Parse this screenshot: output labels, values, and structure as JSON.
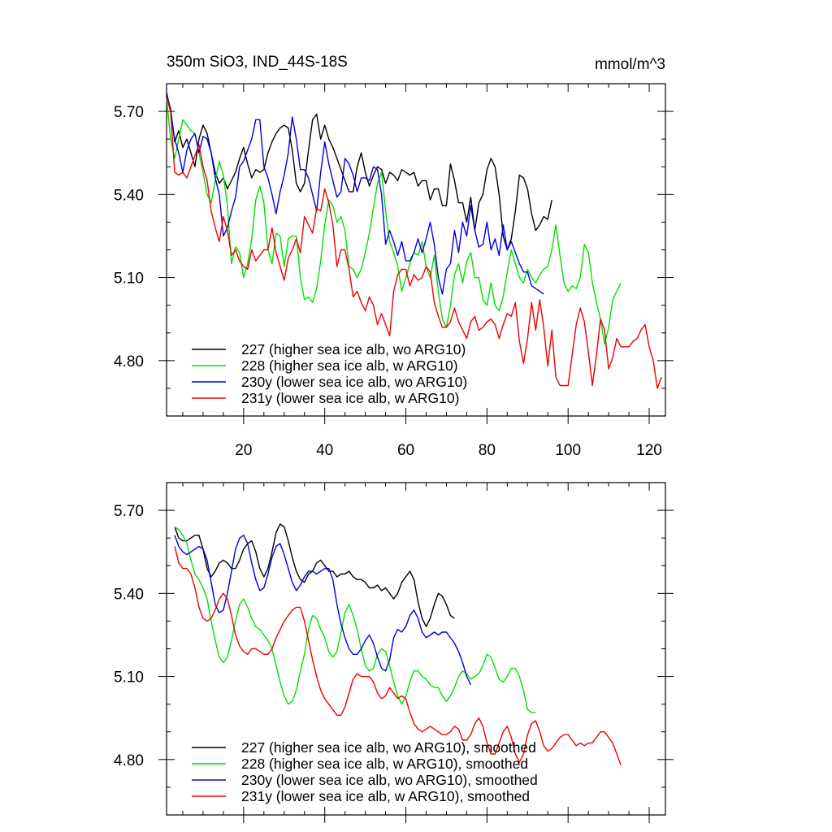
{
  "title_left": "350m SiO3, IND_44S-18S",
  "title_right": "mmol/m^3",
  "colors": {
    "227": "#000000",
    "228": "#00e000",
    "230y": "#0000dd",
    "231y": "#ee0000"
  },
  "chart_data": [
    {
      "type": "line",
      "name": "top-panel",
      "xlim": [
        1,
        124
      ],
      "ylim": [
        4.6,
        5.8
      ],
      "xticks": [
        20,
        40,
        60,
        80,
        100,
        120
      ],
      "xtick_labels": [
        "20",
        "40",
        "60",
        "80",
        "100",
        "120"
      ],
      "yticks": [
        4.8,
        5.1,
        5.4,
        5.7
      ],
      "ytick_labels": [
        "4.80",
        "5.10",
        "5.40",
        "5.70"
      ],
      "legend_position": "bottom-left",
      "series": [
        {
          "id": "227",
          "name": "227 (higher sea ice alb, wo ARG10)",
          "color": "#000000",
          "start": 1,
          "values": [
            5.76,
            5.71,
            5.59,
            5.63,
            5.57,
            5.6,
            5.55,
            5.5,
            5.6,
            5.65,
            5.62,
            5.55,
            5.48,
            5.44,
            5.46,
            5.42,
            5.45,
            5.48,
            5.53,
            5.57,
            5.51,
            5.46,
            5.49,
            5.48,
            5.49,
            5.55,
            5.59,
            5.62,
            5.64,
            5.65,
            5.64,
            5.56,
            5.44,
            5.41,
            5.44,
            5.56,
            5.67,
            5.69,
            5.6,
            5.65,
            5.6,
            5.57,
            5.53,
            5.49,
            5.45,
            5.41,
            5.41,
            5.5,
            5.55,
            5.48,
            5.43,
            5.47,
            5.5,
            5.49,
            5.44,
            5.48,
            5.47,
            5.45,
            5.49,
            5.48,
            5.47,
            5.48,
            5.43,
            5.45,
            5.45,
            5.38,
            5.42,
            5.42,
            5.36,
            5.36,
            5.51,
            5.45,
            5.37,
            5.37,
            5.3,
            5.39,
            5.27,
            5.37,
            5.4,
            5.49,
            5.53,
            5.5,
            5.4,
            5.25,
            5.2,
            5.24,
            5.34,
            5.47,
            5.46,
            5.42,
            5.33,
            5.27,
            5.29,
            5.32,
            5.31,
            5.38
          ]
        },
        {
          "id": "228",
          "name": "228 (higher sea ice alb, w ARG10)",
          "color": "#00e000",
          "start": 1,
          "values": [
            5.75,
            5.6,
            5.53,
            5.6,
            5.67,
            5.65,
            5.63,
            5.62,
            5.55,
            5.48,
            5.4,
            5.37,
            5.45,
            5.52,
            5.47,
            5.36,
            5.15,
            5.21,
            5.19,
            5.1,
            5.15,
            5.24,
            5.38,
            5.43,
            5.37,
            5.2,
            5.15,
            5.26,
            5.25,
            5.14,
            5.24,
            5.25,
            5.25,
            5.1,
            5.02,
            5.03,
            5.01,
            5.06,
            5.16,
            5.29,
            5.38,
            5.36,
            5.3,
            5.32,
            5.27,
            5.14,
            5.13,
            5.1,
            5.13,
            5.19,
            5.26,
            5.35,
            5.44,
            5.48,
            5.34,
            5.23,
            5.19,
            5.14,
            5.05,
            5.1,
            5.15,
            5.19,
            5.18,
            5.23,
            5.14,
            5.1,
            5.18,
            5.05,
            4.95,
            4.92,
            5.0,
            5.11,
            5.15,
            5.08,
            5.16,
            5.19,
            5.1,
            5.1,
            5.02,
            5.0,
            5.08,
            5.0,
            4.98,
            5.03,
            5.12,
            5.2,
            5.15,
            5.1,
            5.08,
            5.13,
            5.1,
            5.08,
            5.11,
            5.13,
            5.14,
            5.2,
            5.29,
            5.18,
            5.08,
            5.05,
            5.07,
            5.06,
            5.1,
            5.22,
            5.19,
            5.08,
            5.01,
            4.95,
            4.86,
            4.92,
            5.02,
            5.05,
            5.08
          ]
        },
        {
          "id": "230y",
          "name": "230y (lower sea ice alb, wo ARG10)",
          "color": "#0000dd",
          "start": 1,
          "values": [
            5.77,
            5.7,
            5.6,
            5.55,
            5.48,
            5.56,
            5.6,
            5.62,
            5.55,
            5.61,
            5.6,
            5.55,
            5.46,
            5.4,
            5.25,
            5.28,
            5.34,
            5.39,
            5.5,
            5.52,
            5.56,
            5.6,
            5.67,
            5.67,
            5.5,
            5.46,
            5.4,
            5.33,
            5.41,
            5.47,
            5.55,
            5.68,
            5.6,
            5.49,
            5.49,
            5.46,
            5.4,
            5.34,
            5.48,
            5.59,
            5.51,
            5.45,
            5.39,
            5.41,
            5.53,
            5.51,
            5.47,
            5.41,
            5.46,
            5.46,
            5.45,
            5.5,
            5.49,
            5.4,
            5.22,
            5.27,
            5.23,
            5.18,
            5.23,
            5.16,
            5.16,
            5.19,
            5.24,
            5.19,
            5.24,
            5.3,
            5.22,
            5.1,
            5.04,
            5.13,
            5.15,
            5.27,
            5.19,
            5.3,
            5.25,
            5.36,
            5.27,
            5.21,
            5.22,
            5.3,
            5.2,
            5.24,
            5.18,
            5.29,
            5.2,
            5.23,
            5.19,
            5.15,
            5.12,
            5.12,
            5.07,
            5.06,
            5.05,
            5.04
          ]
        },
        {
          "id": "231y",
          "name": "231y (lower sea ice alb, w ARG10)",
          "color": "#ee0000",
          "start": 1,
          "values": [
            5.75,
            5.7,
            5.48,
            5.47,
            5.48,
            5.46,
            5.5,
            5.54,
            5.58,
            5.5,
            5.45,
            5.34,
            5.28,
            5.23,
            5.32,
            5.27,
            5.18,
            5.2,
            5.16,
            5.14,
            5.13,
            5.2,
            5.16,
            5.18,
            5.2,
            5.2,
            5.28,
            5.19,
            5.14,
            5.09,
            5.17,
            5.2,
            5.24,
            5.19,
            5.32,
            5.29,
            5.26,
            5.35,
            5.34,
            5.42,
            5.37,
            5.29,
            5.14,
            5.2,
            5.2,
            5.13,
            5.03,
            5.05,
            5.01,
            4.98,
            5.03,
            5.0,
            4.93,
            4.97,
            4.93,
            4.89,
            5.05,
            5.11,
            5.13,
            5.13,
            5.07,
            5.11,
            5.09,
            5.1,
            5.14,
            5.12,
            5.01,
            4.96,
            4.92,
            4.92,
            4.94,
            4.99,
            4.94,
            4.91,
            4.88,
            4.94,
            4.96,
            4.91,
            4.92,
            4.94,
            4.95,
            4.93,
            4.88,
            4.93,
            4.97,
            4.96,
            5.01,
            4.87,
            4.79,
            4.88,
            5.01,
            4.91,
            5.02,
            4.92,
            4.78,
            4.91,
            4.74,
            4.71,
            4.71,
            4.71,
            4.82,
            4.93,
            4.99,
            4.94,
            4.83,
            4.71,
            4.82,
            4.95,
            4.91,
            4.77,
            4.81,
            4.88,
            4.85,
            4.85,
            4.85,
            4.87,
            4.88,
            4.91,
            4.93,
            4.85,
            4.8,
            4.7,
            4.74
          ]
        }
      ]
    },
    {
      "type": "line",
      "name": "bottom-panel",
      "xlim": [
        1,
        124
      ],
      "ylim": [
        4.6,
        5.8
      ],
      "xticks": [
        20,
        40,
        60,
        80,
        100,
        120
      ],
      "xtick_labels": [],
      "yticks": [
        4.8,
        5.1,
        5.4,
        5.7
      ],
      "ytick_labels": [
        "4.80",
        "5.10",
        "5.40",
        "5.70"
      ],
      "legend_position": "bottom-left",
      "series": [
        {
          "id": "227",
          "name": "227 (higher sea ice alb, wo ARG10), smoothed",
          "color": "#000000",
          "start": 3,
          "values": [
            5.64,
            5.6,
            5.59,
            5.59,
            5.6,
            5.61,
            5.61,
            5.56,
            5.49,
            5.46,
            5.48,
            5.51,
            5.52,
            5.51,
            5.49,
            5.49,
            5.52,
            5.56,
            5.58,
            5.59,
            5.55,
            5.49,
            5.46,
            5.49,
            5.55,
            5.62,
            5.65,
            5.64,
            5.59,
            5.53,
            5.48,
            5.45,
            5.44,
            5.47,
            5.48,
            5.51,
            5.52,
            5.5,
            5.48,
            5.48,
            5.46,
            5.47,
            5.47,
            5.48,
            5.46,
            5.45,
            5.45,
            5.44,
            5.42,
            5.42,
            5.43,
            5.41,
            5.42,
            5.4,
            5.38,
            5.4,
            5.44,
            5.46,
            5.48,
            5.45,
            5.37,
            5.31,
            5.28,
            5.31,
            5.36,
            5.4,
            5.39,
            5.36,
            5.32,
            5.31
          ]
        },
        {
          "id": "228",
          "name": "228 (higher sea ice alb, w ARG10), smoothed",
          "color": "#00e000",
          "start": 3,
          "values": [
            5.64,
            5.63,
            5.61,
            5.58,
            5.52,
            5.47,
            5.45,
            5.42,
            5.38,
            5.3,
            5.23,
            5.17,
            5.15,
            5.17,
            5.23,
            5.3,
            5.36,
            5.38,
            5.35,
            5.31,
            5.28,
            5.27,
            5.25,
            5.23,
            5.2,
            5.14,
            5.08,
            5.03,
            5.0,
            5.01,
            5.05,
            5.12,
            5.18,
            5.27,
            5.32,
            5.31,
            5.27,
            5.24,
            5.19,
            5.17,
            5.19,
            5.26,
            5.33,
            5.36,
            5.32,
            5.27,
            5.2,
            5.14,
            5.12,
            5.13,
            5.18,
            5.2,
            5.19,
            5.14,
            5.08,
            5.03,
            5.0,
            5.03,
            5.08,
            5.12,
            5.12,
            5.1,
            5.09,
            5.07,
            5.06,
            5.06,
            5.03,
            5.01,
            5.03,
            5.06,
            5.1,
            5.12,
            5.11,
            5.09,
            5.1,
            5.11,
            5.14,
            5.18,
            5.17,
            5.13,
            5.09,
            5.08,
            5.1,
            5.13,
            5.13,
            5.1,
            5.05,
            4.98,
            4.97,
            4.97
          ]
        },
        {
          "id": "230y",
          "name": "230y (lower sea ice alb, wo ARG10), smoothed",
          "color": "#0000dd",
          "start": 3,
          "values": [
            5.61,
            5.57,
            5.55,
            5.54,
            5.55,
            5.56,
            5.57,
            5.56,
            5.52,
            5.44,
            5.36,
            5.33,
            5.34,
            5.4,
            5.48,
            5.56,
            5.6,
            5.61,
            5.58,
            5.51,
            5.45,
            5.41,
            5.42,
            5.47,
            5.53,
            5.57,
            5.58,
            5.54,
            5.49,
            5.44,
            5.41,
            5.43,
            5.46,
            5.48,
            5.48,
            5.47,
            5.48,
            5.49,
            5.49,
            5.45,
            5.36,
            5.29,
            5.24,
            5.2,
            5.18,
            5.18,
            5.2,
            5.23,
            5.25,
            5.22,
            5.17,
            5.13,
            5.12,
            5.16,
            5.24,
            5.27,
            5.26,
            5.28,
            5.32,
            5.34,
            5.31,
            5.26,
            5.24,
            5.25,
            5.26,
            5.25,
            5.26,
            5.26,
            5.24,
            5.22,
            5.19,
            5.15,
            5.1,
            5.07
          ]
        },
        {
          "id": "231y",
          "name": "231y (lower sea ice alb, w ARG10), smoothed",
          "color": "#ee0000",
          "start": 3,
          "values": [
            5.57,
            5.51,
            5.49,
            5.49,
            5.47,
            5.42,
            5.35,
            5.31,
            5.3,
            5.31,
            5.34,
            5.38,
            5.4,
            5.38,
            5.32,
            5.25,
            5.21,
            5.19,
            5.18,
            5.2,
            5.2,
            5.19,
            5.18,
            5.18,
            5.2,
            5.24,
            5.27,
            5.3,
            5.32,
            5.34,
            5.35,
            5.35,
            5.3,
            5.23,
            5.16,
            5.1,
            5.05,
            5.02,
            5.0,
            4.98,
            4.96,
            4.96,
            4.99,
            5.04,
            5.09,
            5.11,
            5.1,
            5.1,
            5.1,
            5.08,
            5.04,
            5.02,
            5.03,
            5.06,
            5.04,
            5.02,
            5.03,
            5.02,
            4.97,
            4.93,
            4.91,
            4.9,
            4.91,
            4.92,
            4.91,
            4.9,
            4.89,
            4.89,
            4.9,
            4.92,
            4.91,
            4.87,
            4.87,
            4.89,
            4.93,
            4.95,
            4.92,
            4.86,
            4.82,
            4.82,
            4.86,
            4.9,
            4.92,
            4.88,
            4.82,
            4.79,
            4.82,
            4.89,
            4.93,
            4.94,
            4.9,
            4.85,
            4.83,
            4.84,
            4.86,
            4.88,
            4.89,
            4.89,
            4.87,
            4.85,
            4.86,
            4.85,
            4.86,
            4.86,
            4.88,
            4.9,
            4.9,
            4.88,
            4.86,
            4.82,
            4.78
          ]
        }
      ]
    }
  ]
}
